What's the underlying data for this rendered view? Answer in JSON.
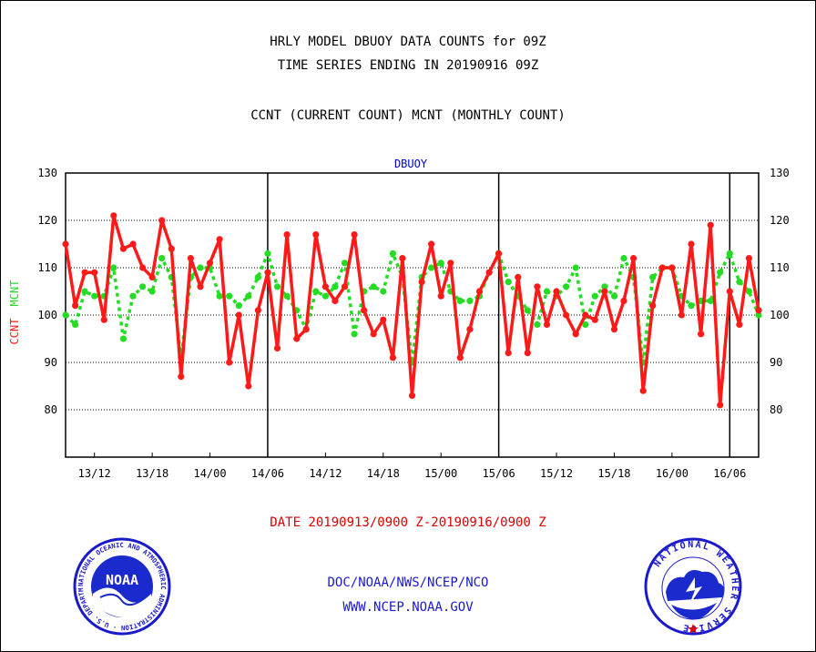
{
  "header": {
    "title_line1": "HRLY MODEL DBUOY DATA COUNTS for 09Z",
    "title_line2": "TIME SERIES ENDING IN 20190916 09Z",
    "title_line3": "CCNT (CURRENT COUNT) MCNT (MONTHLY COUNT)"
  },
  "footer": {
    "date_range": "DATE 20190913/0900 Z-20190916/0900 Z",
    "credit": "DOC/NOAA/NWS/NCEP/NCO",
    "url": "WWW.NCEP.NOAA.GOV"
  },
  "logos": {
    "noaa_text": "NOAA",
    "noaa_ring_text": "NATIONAL OCEANIC AND ATMOSPHERIC ADMINISTRATION · U.S. DEPARTMENT OF COMMERCE ·",
    "nws_ring_text": "NATIONAL WEATHER SERVICE"
  },
  "colors": {
    "ccnt": "#ff1a1a",
    "mcnt": "#22dd22",
    "plot_label": "#0000cc",
    "date_text": "#dd0000",
    "footer_text": "#1a1acc"
  },
  "chart_data": {
    "type": "line",
    "plot_label": "DBUOY",
    "ylabel_left_a": "CCNT",
    "ylabel_left_b": "MCNT",
    "ylim": [
      70,
      130
    ],
    "yticks": [
      80,
      90,
      100,
      110,
      120,
      130
    ],
    "grid_y": true,
    "x_start_hour": 9,
    "x_end_hour": 81,
    "xtick_labels": [
      "13/12",
      "13/18",
      "14/00",
      "14/06",
      "14/12",
      "14/18",
      "15/00",
      "15/06",
      "15/12",
      "15/18",
      "16/00",
      "16/06"
    ],
    "xtick_hours": [
      12,
      18,
      24,
      30,
      36,
      42,
      48,
      54,
      60,
      66,
      72,
      78
    ],
    "day_lines_hours": [
      30,
      54,
      78
    ],
    "series": [
      {
        "name": "CCNT",
        "values": [
          115,
          102,
          109,
          109,
          99,
          121,
          114,
          115,
          110,
          108,
          120,
          114,
          87,
          112,
          106,
          111,
          116,
          90,
          100,
          85,
          101,
          109,
          93,
          117,
          95,
          97,
          117,
          106,
          103,
          106,
          117,
          101,
          96,
          99,
          91,
          112,
          83,
          107,
          115,
          104,
          111,
          91,
          97,
          105,
          109,
          113,
          92,
          108,
          92,
          106,
          98,
          105,
          100,
          96,
          100,
          99,
          105,
          97,
          103,
          112,
          84,
          102,
          110,
          110,
          100,
          115,
          96,
          119,
          81,
          105,
          98,
          112,
          101
        ]
      },
      {
        "name": "MCNT",
        "values": [
          100,
          98,
          105,
          104,
          104,
          110,
          95,
          104,
          106,
          105,
          112,
          108,
          91,
          108,
          110,
          110,
          104,
          104,
          102,
          104,
          108,
          113,
          106,
          104,
          101,
          97,
          105,
          104,
          106,
          111,
          96,
          105,
          106,
          105,
          113,
          108,
          90,
          108,
          110,
          111,
          105,
          103,
          103,
          104,
          109,
          113,
          107,
          104,
          101,
          98,
          105,
          104,
          106,
          110,
          98,
          104,
          106,
          104,
          112,
          108,
          90,
          108,
          110,
          110,
          104,
          102,
          103,
          103,
          109,
          113,
          107,
          105,
          100
        ]
      }
    ]
  }
}
